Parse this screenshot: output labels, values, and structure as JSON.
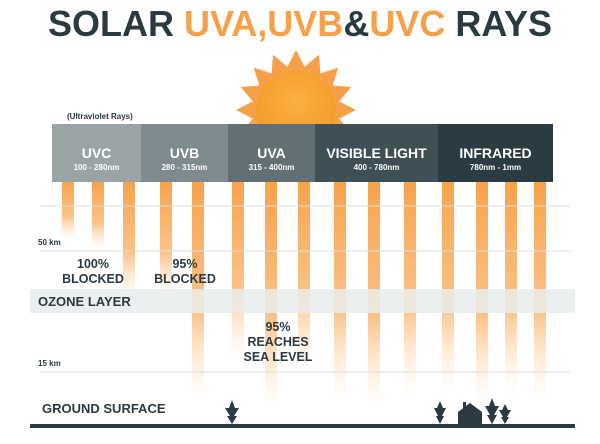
{
  "title": {
    "parts": [
      "SOLAR",
      "UVA,UVB",
      "&",
      "UVC",
      "RAYS"
    ]
  },
  "subtitle": "(Ultraviolet Rays)",
  "bands": [
    {
      "label": "UVC",
      "range": "100 - 280nm"
    },
    {
      "label": "UVB",
      "range": "280 - 315nm"
    },
    {
      "label": "UVA",
      "range": "315 - 400nm"
    },
    {
      "label": "VISIBLE LIGHT",
      "range": "400 - 780nm"
    },
    {
      "label": "INFRARED",
      "range": "780nm - 1mm"
    }
  ],
  "altitudes": [
    "50 km",
    "15 km"
  ],
  "layers": {
    "ozone": "OZONE LAYER",
    "ground": "GROUND SURFACE"
  },
  "annotations": [
    {
      "lines": [
        "100%",
        "BLOCKED"
      ]
    },
    {
      "lines": [
        "95%",
        "BLOCKED"
      ]
    },
    {
      "lines": [
        "95%",
        "REACHES",
        "SEA LEVEL"
      ]
    }
  ]
}
